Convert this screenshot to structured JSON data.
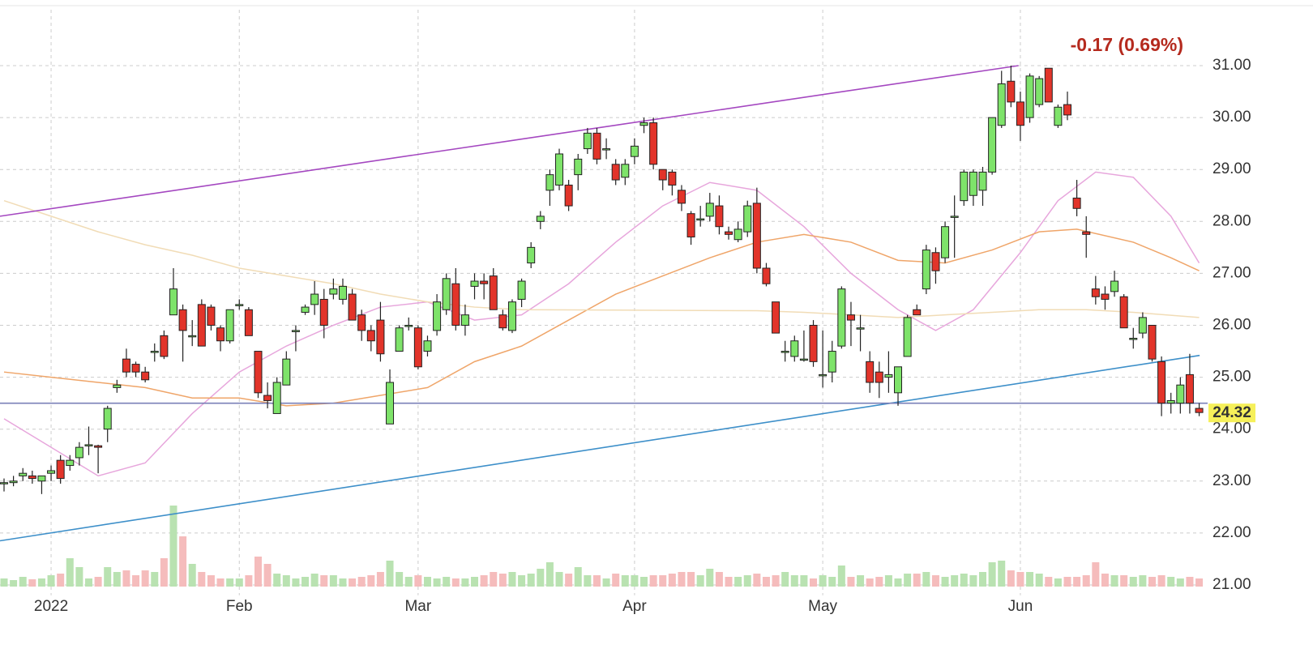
{
  "chart_data": {
    "type": "candlestick",
    "change_label": "-0.17 (0.69%)",
    "last_price": 24.32,
    "up_color": "#7ee36a",
    "down_color": "#e2342a",
    "volume_up_color": "#b9e2b1",
    "volume_down_color": "#f5bcbc",
    "xlim": [
      -0.43,
      127.9
    ],
    "ylim": [
      20.8,
      32.2
    ],
    "grid": true,
    "yticks": [
      {
        "value": 21,
        "label": "21.00"
      },
      {
        "value": 22,
        "label": "22.00"
      },
      {
        "value": 23,
        "label": "23.00"
      },
      {
        "value": 24,
        "label": "24.00"
      },
      {
        "value": 25,
        "label": "25.00"
      },
      {
        "value": 26,
        "label": "26.00"
      },
      {
        "value": 27,
        "label": "27.00"
      },
      {
        "value": 28,
        "label": "28.00"
      },
      {
        "value": 29,
        "label": "29.00"
      },
      {
        "value": 30,
        "label": "30.00"
      },
      {
        "value": 31,
        "label": "31.00"
      }
    ],
    "xticks": [
      {
        "value": 5,
        "label": "2022"
      },
      {
        "value": 25,
        "label": "Feb"
      },
      {
        "value": 44,
        "label": "Mar"
      },
      {
        "value": 67,
        "label": "Apr"
      },
      {
        "value": 87,
        "label": "May"
      },
      {
        "value": 108,
        "label": "Jun"
      }
    ],
    "x": [
      0,
      1,
      2,
      3,
      4,
      5,
      6,
      7,
      8,
      9,
      10,
      11,
      12,
      13,
      14,
      15,
      16,
      17,
      18,
      19,
      20,
      21,
      22,
      23,
      24,
      25,
      26,
      27,
      28,
      29,
      30,
      31,
      32,
      33,
      34,
      35,
      36,
      37,
      38,
      39,
      40,
      41,
      42,
      43,
      44,
      45,
      46,
      47,
      48,
      49,
      50,
      51,
      52,
      53,
      54,
      55,
      56,
      57,
      58,
      59,
      60,
      61,
      62,
      63,
      64,
      65,
      66,
      67,
      68,
      69,
      70,
      71,
      72,
      73,
      74,
      75,
      76,
      77,
      78,
      79,
      80,
      81,
      82,
      83,
      84,
      85,
      86,
      87,
      88,
      89,
      90,
      91,
      92,
      93,
      94,
      95,
      96,
      97,
      98,
      99,
      100,
      101,
      102,
      103,
      104,
      105,
      106,
      107,
      108,
      109,
      110,
      111,
      112,
      113,
      114,
      115,
      116,
      117,
      118,
      119,
      120,
      121,
      122,
      123,
      124,
      125,
      126,
      127
    ],
    "ohlc": [
      [
        22.95,
        23.05,
        22.8,
        22.97
      ],
      [
        22.97,
        23.1,
        22.9,
        23.0
      ],
      [
        23.1,
        23.25,
        23.0,
        23.15
      ],
      [
        23.1,
        23.2,
        22.95,
        23.05
      ],
      [
        23.0,
        23.1,
        22.75,
        23.1
      ],
      [
        23.15,
        23.3,
        23.0,
        23.2
      ],
      [
        23.4,
        23.5,
        22.95,
        23.05
      ],
      [
        23.3,
        23.5,
        23.2,
        23.4
      ],
      [
        23.45,
        23.75,
        23.3,
        23.65
      ],
      [
        23.7,
        24.05,
        23.5,
        23.7
      ],
      [
        23.68,
        23.7,
        23.15,
        23.65
      ],
      [
        24.0,
        24.45,
        23.75,
        24.4
      ],
      [
        24.8,
        24.95,
        24.7,
        24.85
      ],
      [
        25.35,
        25.55,
        25.0,
        25.1
      ],
      [
        25.25,
        25.3,
        25.0,
        25.1
      ],
      [
        25.1,
        25.2,
        24.9,
        24.95
      ],
      [
        25.5,
        25.65,
        25.3,
        25.5
      ],
      [
        25.8,
        25.9,
        25.35,
        25.4
      ],
      [
        26.2,
        27.1,
        26.2,
        26.7
      ],
      [
        26.3,
        26.4,
        25.3,
        25.9
      ],
      [
        25.8,
        26.1,
        25.6,
        25.8
      ],
      [
        26.4,
        26.5,
        25.6,
        25.6
      ],
      [
        26.35,
        26.4,
        25.9,
        26.0
      ],
      [
        25.95,
        26.0,
        25.5,
        25.7
      ],
      [
        25.7,
        26.3,
        25.65,
        26.3
      ],
      [
        26.4,
        26.5,
        26.3,
        26.4
      ],
      [
        26.3,
        26.35,
        25.8,
        25.8
      ],
      [
        25.5,
        25.5,
        24.6,
        24.7
      ],
      [
        24.65,
        24.9,
        24.4,
        24.55
      ],
      [
        24.3,
        25.0,
        24.3,
        24.9
      ],
      [
        24.85,
        25.5,
        24.85,
        25.35
      ],
      [
        25.9,
        26.0,
        25.5,
        25.9
      ],
      [
        26.25,
        26.4,
        26.2,
        26.35
      ],
      [
        26.4,
        26.85,
        26.2,
        26.6
      ],
      [
        26.5,
        26.7,
        25.75,
        26.0
      ],
      [
        26.6,
        26.9,
        26.5,
        26.7
      ],
      [
        26.5,
        26.9,
        26.4,
        26.75
      ],
      [
        26.6,
        26.7,
        26.1,
        26.1
      ],
      [
        26.2,
        26.3,
        25.7,
        25.9
      ],
      [
        25.9,
        26.0,
        25.5,
        25.7
      ],
      [
        26.1,
        26.45,
        25.3,
        25.45
      ],
      [
        24.1,
        25.15,
        24.1,
        24.9
      ],
      [
        25.5,
        26.0,
        25.5,
        25.95
      ],
      [
        26.0,
        26.15,
        25.9,
        26.0
      ],
      [
        25.95,
        26.0,
        25.15,
        25.2
      ],
      [
        25.5,
        25.8,
        25.4,
        25.7
      ],
      [
        25.9,
        26.6,
        25.8,
        26.45
      ],
      [
        26.3,
        27.0,
        26.2,
        26.9
      ],
      [
        26.8,
        27.1,
        25.9,
        26.0
      ],
      [
        26.0,
        26.4,
        25.8,
        26.2
      ],
      [
        26.75,
        27.0,
        26.5,
        26.85
      ],
      [
        26.85,
        27.0,
        26.5,
        26.8
      ],
      [
        26.95,
        27.1,
        26.3,
        26.3
      ],
      [
        26.2,
        26.3,
        25.9,
        25.95
      ],
      [
        25.9,
        26.5,
        25.85,
        26.45
      ],
      [
        26.5,
        26.9,
        26.35,
        26.85
      ],
      [
        27.2,
        27.6,
        27.1,
        27.5
      ],
      [
        28.0,
        28.2,
        27.85,
        28.1
      ],
      [
        28.6,
        29.0,
        28.3,
        28.9
      ],
      [
        28.7,
        29.4,
        28.6,
        29.3
      ],
      [
        28.7,
        28.8,
        28.2,
        28.3
      ],
      [
        28.9,
        29.3,
        28.6,
        29.2
      ],
      [
        29.4,
        29.8,
        29.3,
        29.7
      ],
      [
        29.7,
        29.8,
        29.1,
        29.2
      ],
      [
        29.4,
        29.6,
        29.2,
        29.4
      ],
      [
        29.1,
        29.2,
        28.7,
        28.8
      ],
      [
        28.85,
        29.2,
        28.7,
        29.1
      ],
      [
        29.25,
        29.6,
        29.1,
        29.45
      ],
      [
        29.85,
        30.0,
        29.7,
        29.9
      ],
      [
        29.9,
        30.0,
        29.0,
        29.1
      ],
      [
        29.0,
        29.0,
        28.6,
        28.8
      ],
      [
        28.95,
        29.0,
        28.5,
        28.7
      ],
      [
        28.6,
        28.7,
        28.2,
        28.35
      ],
      [
        28.15,
        28.2,
        27.55,
        27.7
      ],
      [
        28.05,
        28.3,
        27.9,
        28.05
      ],
      [
        28.1,
        28.55,
        28.0,
        28.35
      ],
      [
        28.3,
        28.5,
        27.75,
        27.9
      ],
      [
        27.8,
        27.9,
        27.65,
        27.75
      ],
      [
        27.65,
        28.0,
        27.6,
        27.85
      ],
      [
        27.8,
        28.4,
        27.7,
        28.3
      ],
      [
        28.35,
        28.65,
        27.0,
        27.1
      ],
      [
        27.1,
        27.2,
        26.75,
        26.8
      ],
      [
        26.45,
        26.45,
        25.85,
        25.85
      ],
      [
        25.5,
        25.7,
        25.3,
        25.5
      ],
      [
        25.4,
        25.8,
        25.3,
        25.7
      ],
      [
        25.35,
        25.9,
        25.3,
        25.35
      ],
      [
        26.0,
        26.1,
        25.2,
        25.3
      ],
      [
        25.05,
        25.9,
        24.8,
        25.05
      ],
      [
        25.1,
        25.7,
        24.9,
        25.5
      ],
      [
        25.6,
        26.75,
        25.55,
        26.7
      ],
      [
        26.2,
        26.45,
        25.6,
        26.1
      ],
      [
        25.95,
        26.2,
        25.5,
        25.95
      ],
      [
        25.3,
        25.5,
        24.7,
        24.9
      ],
      [
        25.1,
        25.3,
        24.6,
        24.9
      ],
      [
        25.0,
        25.5,
        24.7,
        25.05
      ],
      [
        24.7,
        25.2,
        24.45,
        25.2
      ],
      [
        25.4,
        26.2,
        25.4,
        26.15
      ],
      [
        26.3,
        26.4,
        26.2,
        26.2
      ],
      [
        26.7,
        27.55,
        26.6,
        27.45
      ],
      [
        27.4,
        27.5,
        26.8,
        27.05
      ],
      [
        27.3,
        28.0,
        27.2,
        27.9
      ],
      [
        28.1,
        28.5,
        27.3,
        28.1
      ],
      [
        28.4,
        29.0,
        28.3,
        28.95
      ],
      [
        28.5,
        29.0,
        28.3,
        28.95
      ],
      [
        28.6,
        29.05,
        28.3,
        28.95
      ],
      [
        28.95,
        30.0,
        28.9,
        30.0
      ],
      [
        29.85,
        30.9,
        29.8,
        30.65
      ],
      [
        30.7,
        31.0,
        30.2,
        30.3
      ],
      [
        30.3,
        30.5,
        29.55,
        29.85
      ],
      [
        30.0,
        30.85,
        29.9,
        30.8
      ],
      [
        30.25,
        30.8,
        30.2,
        30.75
      ],
      [
        30.95,
        30.95,
        30.3,
        30.3
      ],
      [
        29.85,
        30.25,
        29.8,
        30.2
      ],
      [
        30.25,
        30.5,
        29.95,
        30.05
      ],
      [
        28.45,
        28.8,
        28.1,
        28.25
      ],
      [
        27.8,
        28.1,
        27.3,
        27.75
      ],
      [
        26.7,
        26.95,
        26.4,
        26.55
      ],
      [
        26.6,
        26.75,
        26.3,
        26.5
      ],
      [
        26.65,
        27.05,
        26.55,
        26.85
      ],
      [
        26.55,
        26.6,
        25.95,
        25.95
      ],
      [
        25.75,
        25.95,
        25.55,
        25.75
      ],
      [
        25.85,
        26.25,
        25.75,
        26.15
      ],
      [
        26.0,
        26.0,
        25.3,
        25.35
      ],
      [
        25.3,
        25.4,
        24.25,
        24.5
      ],
      [
        24.5,
        24.7,
        24.3,
        24.55
      ],
      [
        24.5,
        25.0,
        24.3,
        24.85
      ],
      [
        25.05,
        25.45,
        24.3,
        24.5
      ],
      [
        24.4,
        24.5,
        24.25,
        24.32
      ]
    ],
    "volume": [
      10,
      8,
      12,
      9,
      10,
      14,
      16,
      35,
      24,
      10,
      12,
      24,
      18,
      20,
      14,
      20,
      18,
      35,
      100,
      62,
      28,
      18,
      14,
      10,
      10,
      10,
      14,
      37,
      28,
      16,
      14,
      10,
      12,
      16,
      14,
      14,
      10,
      10,
      12,
      14,
      18,
      32,
      18,
      12,
      14,
      12,
      10,
      12,
      10,
      10,
      12,
      14,
      18,
      16,
      18,
      14,
      16,
      22,
      30,
      18,
      16,
      24,
      14,
      14,
      10,
      16,
      14,
      14,
      12,
      14,
      14,
      16,
      18,
      18,
      14,
      22,
      18,
      12,
      12,
      14,
      16,
      12,
      14,
      18,
      14,
      14,
      10,
      14,
      12,
      26,
      12,
      14,
      10,
      12,
      14,
      10,
      16,
      16,
      18,
      14,
      12,
      14,
      16,
      14,
      18,
      30,
      32,
      20,
      18,
      18,
      16,
      12,
      10,
      12,
      12,
      14,
      30,
      16,
      14,
      14,
      12,
      14,
      12,
      14,
      12,
      10,
      12,
      10
    ],
    "series": [
      {
        "color": "#e7a6dc",
        "x": [
          0,
          10,
          15,
          20,
          25,
          30,
          35,
          40,
          45,
          50,
          55,
          60,
          65,
          70,
          75,
          80,
          85,
          90,
          95,
          99,
          103,
          108,
          112,
          116,
          120,
          124,
          127
        ],
        "values": [
          24.2,
          23.1,
          23.35,
          24.3,
          25.1,
          25.6,
          26.0,
          26.35,
          26.45,
          26.1,
          26.2,
          26.8,
          27.6,
          28.3,
          28.75,
          28.6,
          27.9,
          27.0,
          26.3,
          25.9,
          26.3,
          27.4,
          28.4,
          28.95,
          28.85,
          28.1,
          27.2
        ]
      },
      {
        "color": "#efa569",
        "x": [
          0,
          5,
          10,
          15,
          20,
          25,
          30,
          35,
          40,
          45,
          50,
          55,
          60,
          65,
          70,
          75,
          80,
          85,
          90,
          95,
          100,
          105,
          110,
          114,
          120,
          124,
          127
        ],
        "values": [
          25.1,
          25.0,
          24.9,
          24.8,
          24.6,
          24.6,
          24.45,
          24.5,
          24.65,
          24.8,
          25.3,
          25.6,
          26.1,
          26.6,
          26.95,
          27.3,
          27.6,
          27.75,
          27.6,
          27.25,
          27.2,
          27.45,
          27.8,
          27.85,
          27.6,
          27.3,
          27.05
        ]
      },
      {
        "color": "#f1dcb6",
        "x": [
          0,
          5,
          10,
          15,
          20,
          25,
          30,
          35,
          40,
          45,
          50,
          55,
          80,
          85,
          90,
          95,
          100,
          105,
          110,
          115,
          120,
          127
        ],
        "values": [
          28.4,
          28.1,
          27.8,
          27.55,
          27.35,
          27.1,
          26.95,
          26.8,
          26.6,
          26.45,
          26.35,
          26.3,
          26.28,
          26.25,
          26.2,
          26.15,
          26.2,
          26.25,
          26.3,
          26.3,
          26.25,
          26.15
        ]
      },
      {
        "color": "#a447c0",
        "x": [
          -0.43,
          107.8
        ],
        "values": [
          28.1,
          31.0
        ]
      },
      {
        "color": "#3d8fc9",
        "x": [
          -0.43,
          127.05
        ],
        "values": [
          21.85,
          25.42
        ]
      },
      {
        "color": "#7a80b8",
        "x": [
          -0.43,
          127.9
        ],
        "values": [
          24.5,
          24.5
        ]
      }
    ]
  }
}
